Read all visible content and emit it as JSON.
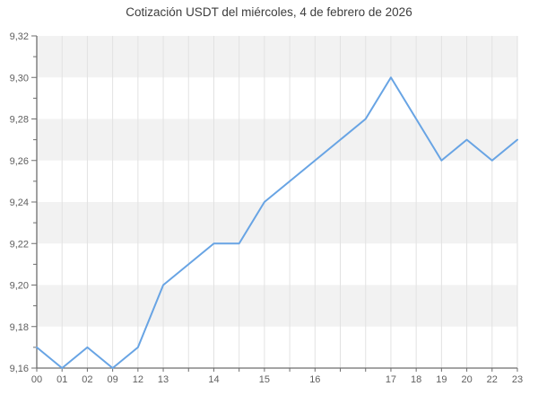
{
  "title": "Cotización USDT del miércoles, 4 de febrero de 2026",
  "chart_data": {
    "type": "line",
    "series_name": "USDT",
    "x_labels": [
      "00",
      "01",
      "02",
      "09",
      "12",
      "13",
      "",
      "14",
      "",
      "15",
      "",
      "16",
      "",
      "",
      "17",
      "18",
      "19",
      "20",
      "22",
      "23"
    ],
    "values": [
      9.17,
      9.16,
      9.17,
      9.16,
      9.17,
      9.2,
      9.21,
      9.22,
      9.22,
      9.24,
      9.25,
      9.26,
      9.27,
      9.28,
      9.3,
      9.28,
      9.26,
      9.27,
      9.26,
      9.27
    ],
    "title": "Cotización USDT del miércoles, 4 de febrero de 2026",
    "xlabel": "",
    "ylabel": "",
    "ylim": [
      9.16,
      9.32
    ],
    "y_major_step": 0.02,
    "y_minor_step": 0.01,
    "y_tick_labels": [
      "9,32",
      "9,30",
      "9,28",
      "9,26",
      "9,24",
      "9,22",
      "9,20",
      "9,18",
      "9,16"
    ],
    "grid": "vertical-gridlines-plus-alternating-horizontal-bands",
    "legend": "none",
    "colors": {
      "line": "#68a4e4",
      "band": "#f2f2f2",
      "grid": "#e2e2e2",
      "axis": "#6e6e6e",
      "tick_text": "#5f5f5f",
      "title_text": "#3d3d3d",
      "background": "#ffffff"
    }
  }
}
